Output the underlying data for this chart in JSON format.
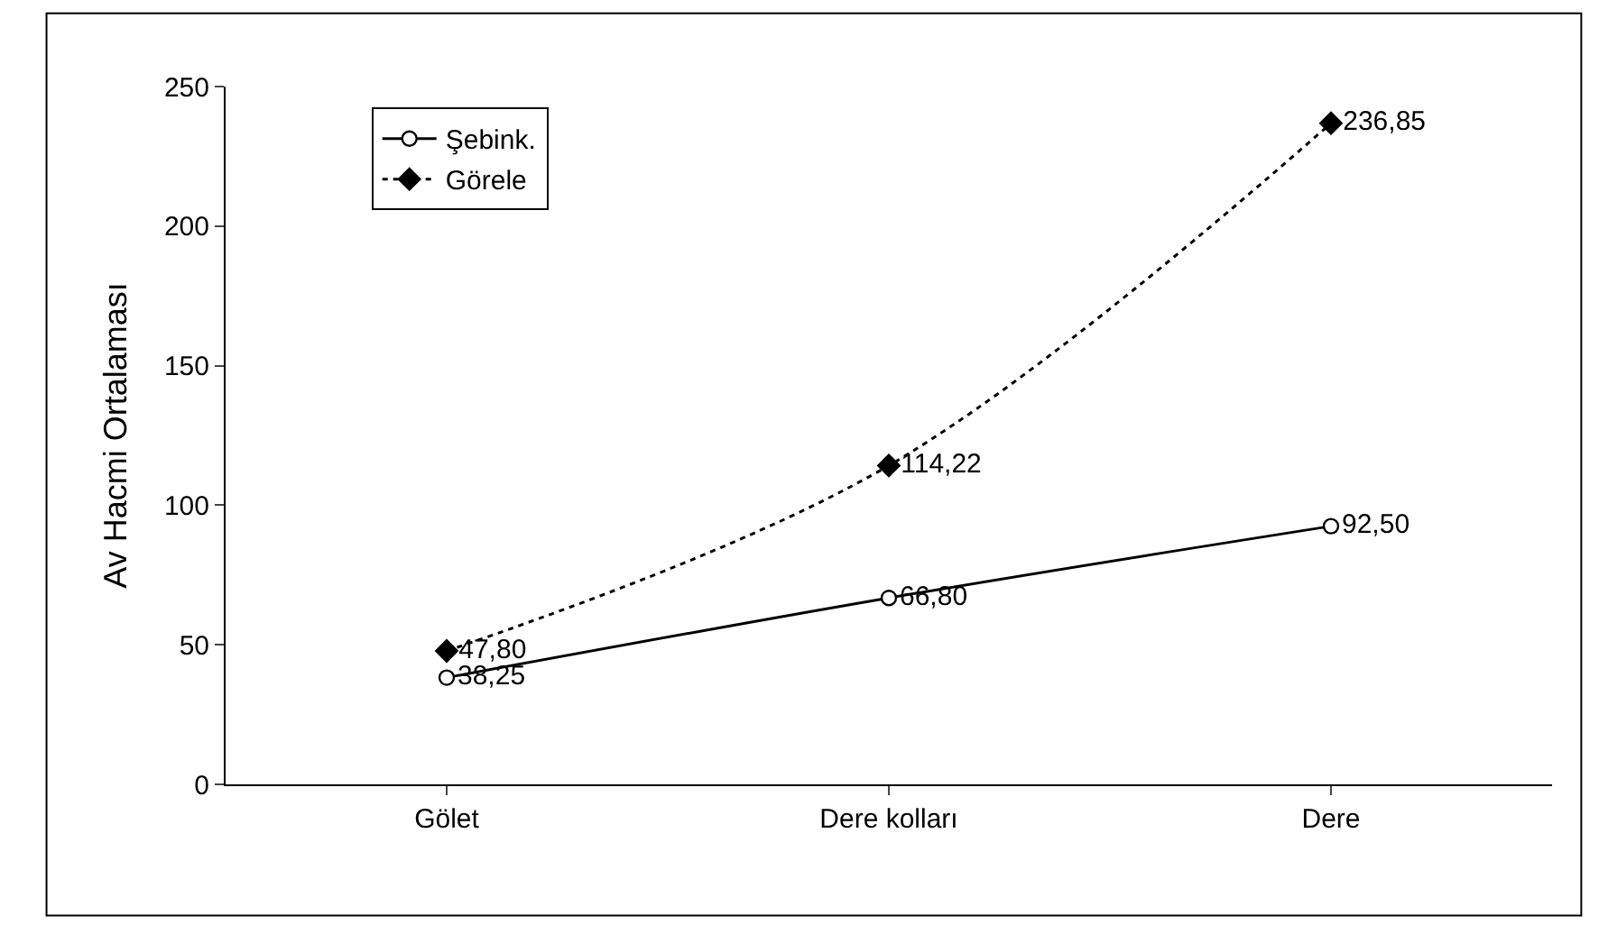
{
  "chart_data": {
    "type": "line",
    "ylabel": "Av Hacmi Ortalaması",
    "categories": [
      "Gölet",
      "Dere kolları",
      "Dere"
    ],
    "series": [
      {
        "name": "Şebink.",
        "color": "#000000",
        "values": [
          38.25,
          66.8,
          92.5
        ],
        "value_labels": [
          "38,25",
          "66,80",
          "92,50"
        ],
        "marker": "circle",
        "line_style": "solid"
      },
      {
        "name": "Görele",
        "color": "#000000",
        "values": [
          47.8,
          114.22,
          236.85
        ],
        "value_labels": [
          "47,80",
          "114,22",
          "236,85"
        ],
        "marker": "diamond",
        "line_style": "dotted"
      }
    ],
    "ylim": [
      0,
      250
    ],
    "yticks": [
      0,
      50,
      100,
      150,
      200,
      250
    ],
    "grid": false,
    "legend": "top left"
  }
}
